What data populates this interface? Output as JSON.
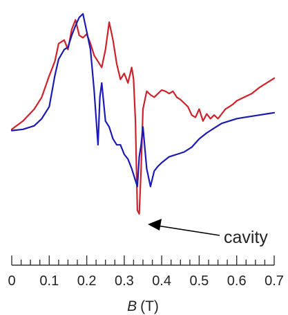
{
  "chart_data": {
    "type": "line",
    "title": "",
    "xlabel": "B",
    "xunit": "(T)",
    "ylabel": "",
    "xlim": [
      0,
      0.7
    ],
    "x_ticks": [
      "0",
      "0.1",
      "0.2",
      "0.3",
      "0.4",
      "0.5",
      "0.6",
      "0.7"
    ],
    "y_axis_shown": false,
    "grid": false,
    "legend": "none",
    "annotations": [
      {
        "text": "cavity",
        "points_to": {
          "x": 0.335,
          "y": -0.7
        }
      }
    ],
    "series": [
      {
        "color": "#d0202a",
        "x": [
          0,
          0.03,
          0.06,
          0.08,
          0.1,
          0.115,
          0.125,
          0.14,
          0.15,
          0.16,
          0.17,
          0.18,
          0.19,
          0.2,
          0.21,
          0.22,
          0.23,
          0.24,
          0.25,
          0.26,
          0.27,
          0.28,
          0.29,
          0.3,
          0.31,
          0.32,
          0.325,
          0.33,
          0.335,
          0.34,
          0.345,
          0.35,
          0.36,
          0.37,
          0.38,
          0.39,
          0.4,
          0.41,
          0.42,
          0.43,
          0.44,
          0.45,
          0.46,
          0.47,
          0.48,
          0.49,
          0.5,
          0.51,
          0.52,
          0.53,
          0.54,
          0.55,
          0.56,
          0.57,
          0.58,
          0.59,
          0.6,
          0.62,
          0.64,
          0.66,
          0.68,
          0.7
        ],
        "y": [
          0.03,
          0.1,
          0.2,
          0.3,
          0.48,
          0.6,
          0.75,
          0.78,
          0.7,
          0.87,
          0.95,
          0.82,
          0.8,
          0.83,
          0.75,
          0.65,
          0.6,
          0.55,
          0.7,
          0.93,
          0.78,
          0.58,
          0.45,
          0.5,
          0.42,
          0.55,
          0.45,
          0.1,
          -0.65,
          -0.68,
          -0.3,
          0.2,
          0.35,
          0.32,
          0.3,
          0.33,
          0.36,
          0.35,
          0.33,
          0.35,
          0.3,
          0.28,
          0.25,
          0.22,
          0.15,
          0.13,
          0.2,
          0.1,
          0.16,
          0.12,
          0.15,
          0.12,
          0.16,
          0.2,
          0.22,
          0.24,
          0.27,
          0.3,
          0.33,
          0.38,
          0.42,
          0.46
        ]
      },
      {
        "color": "#1a1ab4",
        "x": [
          0,
          0.03,
          0.06,
          0.08,
          0.1,
          0.115,
          0.125,
          0.14,
          0.15,
          0.16,
          0.17,
          0.18,
          0.19,
          0.2,
          0.21,
          0.22,
          0.23,
          0.235,
          0.24,
          0.25,
          0.26,
          0.27,
          0.28,
          0.29,
          0.3,
          0.31,
          0.32,
          0.325,
          0.33,
          0.335,
          0.34,
          0.345,
          0.35,
          0.36,
          0.37,
          0.38,
          0.39,
          0.4,
          0.42,
          0.44,
          0.46,
          0.48,
          0.5,
          0.52,
          0.54,
          0.56,
          0.58,
          0.6,
          0.62,
          0.64,
          0.66,
          0.68,
          0.7
        ],
        "y": [
          0.02,
          0.03,
          0.06,
          0.12,
          0.22,
          0.48,
          0.62,
          0.7,
          0.72,
          0.82,
          0.9,
          0.97,
          1.0,
          0.85,
          0.7,
          0.35,
          -0.1,
          0.3,
          0.42,
          0.1,
          0.05,
          -0.05,
          -0.1,
          -0.1,
          -0.18,
          -0.22,
          -0.3,
          -0.35,
          -0.4,
          -0.45,
          -0.2,
          -0.1,
          0.05,
          -0.3,
          -0.45,
          -0.32,
          -0.28,
          -0.25,
          -0.2,
          -0.18,
          -0.16,
          -0.12,
          -0.05,
          0.0,
          0.04,
          0.08,
          0.1,
          0.12,
          0.13,
          0.14,
          0.15,
          0.16,
          0.17
        ]
      }
    ]
  }
}
